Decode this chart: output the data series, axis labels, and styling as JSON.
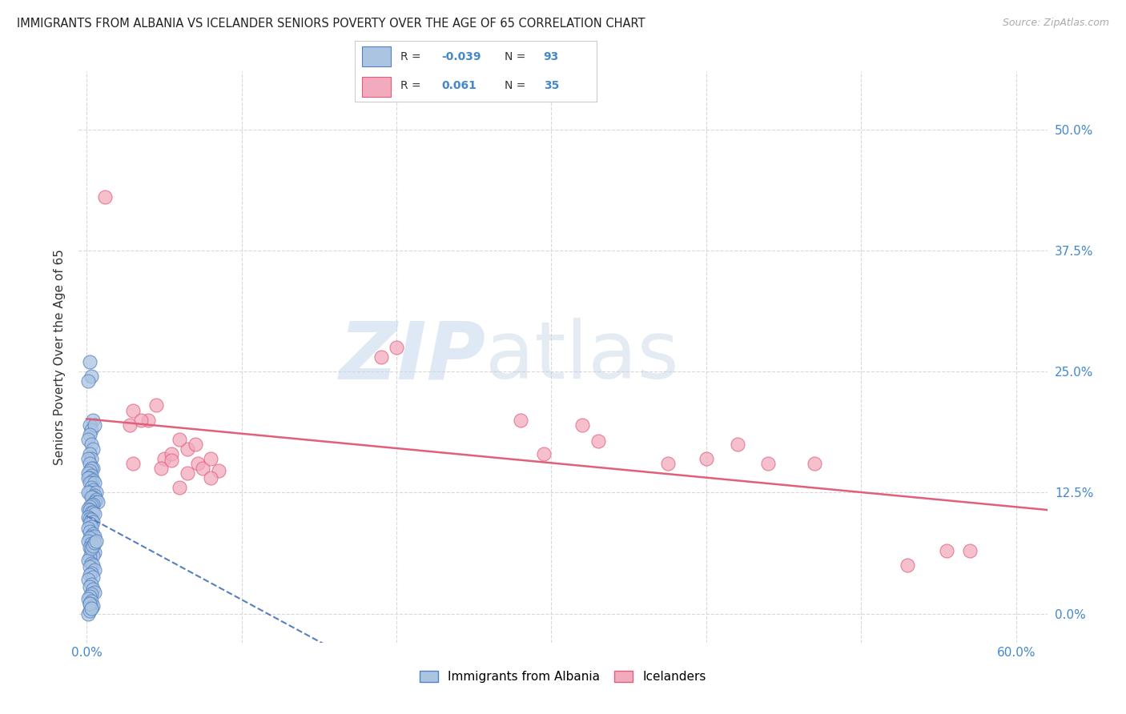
{
  "title": "IMMIGRANTS FROM ALBANIA VS ICELANDER SENIORS POVERTY OVER THE AGE OF 65 CORRELATION CHART",
  "source": "Source: ZipAtlas.com",
  "ylabel": "Seniors Poverty Over the Age of 65",
  "r_albania": -0.039,
  "n_albania": 93,
  "r_icelanders": 0.061,
  "n_icelanders": 35,
  "xlim": [
    -0.005,
    0.62
  ],
  "ylim": [
    -0.03,
    0.56
  ],
  "yticks": [
    0.0,
    0.125,
    0.25,
    0.375,
    0.5
  ],
  "ytick_labels": [
    "0.0%",
    "12.5%",
    "25.0%",
    "37.5%",
    "50.0%"
  ],
  "xticks": [
    0.0,
    0.1,
    0.2,
    0.3,
    0.4,
    0.5,
    0.6
  ],
  "xtick_labels": [
    "0.0%",
    "",
    "",
    "",
    "",
    "",
    "60.0%"
  ],
  "color_albania": "#aac4e2",
  "color_icelanders": "#f2aabe",
  "color_trend_albania": "#5580c0",
  "color_trend_icelanders": "#e0607a",
  "background_color": "#ffffff",
  "grid_color": "#d8d8d8",
  "albania_x": [
    0.002,
    0.003,
    0.001,
    0.004,
    0.002,
    0.003,
    0.005,
    0.002,
    0.001,
    0.003,
    0.004,
    0.002,
    0.003,
    0.001,
    0.002,
    0.004,
    0.003,
    0.002,
    0.001,
    0.003,
    0.002,
    0.001,
    0.004,
    0.003,
    0.002,
    0.005,
    0.003,
    0.004,
    0.002,
    0.001,
    0.006,
    0.005,
    0.004,
    0.003,
    0.006,
    0.005,
    0.007,
    0.004,
    0.003,
    0.002,
    0.001,
    0.002,
    0.003,
    0.004,
    0.005,
    0.001,
    0.002,
    0.003,
    0.004,
    0.002,
    0.003,
    0.001,
    0.002,
    0.004,
    0.003,
    0.005,
    0.002,
    0.001,
    0.003,
    0.004,
    0.002,
    0.003,
    0.005,
    0.004,
    0.002,
    0.001,
    0.003,
    0.004,
    0.002,
    0.005,
    0.003,
    0.002,
    0.004,
    0.001,
    0.003,
    0.002,
    0.004,
    0.005,
    0.003,
    0.002,
    0.001,
    0.003,
    0.002,
    0.004,
    0.003,
    0.001,
    0.002,
    0.003,
    0.004,
    0.005,
    0.006,
    0.002,
    0.003
  ],
  "albania_y": [
    0.26,
    0.245,
    0.24,
    0.2,
    0.195,
    0.19,
    0.195,
    0.185,
    0.18,
    0.175,
    0.17,
    0.165,
    0.16,
    0.16,
    0.155,
    0.15,
    0.15,
    0.148,
    0.145,
    0.143,
    0.14,
    0.14,
    0.138,
    0.135,
    0.135,
    0.135,
    0.13,
    0.128,
    0.125,
    0.125,
    0.125,
    0.122,
    0.12,
    0.12,
    0.118,
    0.115,
    0.115,
    0.113,
    0.112,
    0.11,
    0.108,
    0.107,
    0.105,
    0.105,
    0.103,
    0.1,
    0.098,
    0.097,
    0.095,
    0.093,
    0.09,
    0.088,
    0.085,
    0.082,
    0.08,
    0.08,
    0.078,
    0.075,
    0.072,
    0.07,
    0.068,
    0.065,
    0.063,
    0.06,
    0.058,
    0.055,
    0.052,
    0.05,
    0.048,
    0.045,
    0.042,
    0.04,
    0.038,
    0.035,
    0.03,
    0.028,
    0.025,
    0.022,
    0.02,
    0.018,
    0.015,
    0.013,
    0.01,
    0.008,
    0.005,
    0.0,
    0.003,
    0.067,
    0.07,
    0.073,
    0.075,
    0.01,
    0.005
  ],
  "icelanders_x": [
    0.012,
    0.03,
    0.04,
    0.045,
    0.028,
    0.035,
    0.03,
    0.05,
    0.055,
    0.065,
    0.048,
    0.055,
    0.072,
    0.075,
    0.08,
    0.085,
    0.065,
    0.08,
    0.06,
    0.07,
    0.19,
    0.2,
    0.28,
    0.295,
    0.32,
    0.33,
    0.375,
    0.4,
    0.42,
    0.44,
    0.57,
    0.555,
    0.53,
    0.47,
    0.06
  ],
  "icelanders_y": [
    0.43,
    0.21,
    0.2,
    0.215,
    0.195,
    0.2,
    0.155,
    0.16,
    0.165,
    0.17,
    0.15,
    0.158,
    0.155,
    0.15,
    0.16,
    0.148,
    0.145,
    0.14,
    0.18,
    0.175,
    0.265,
    0.275,
    0.2,
    0.165,
    0.195,
    0.178,
    0.155,
    0.16,
    0.175,
    0.155,
    0.065,
    0.065,
    0.05,
    0.155,
    0.13
  ],
  "watermark_zip": "ZIP",
  "watermark_atlas": "atlas"
}
